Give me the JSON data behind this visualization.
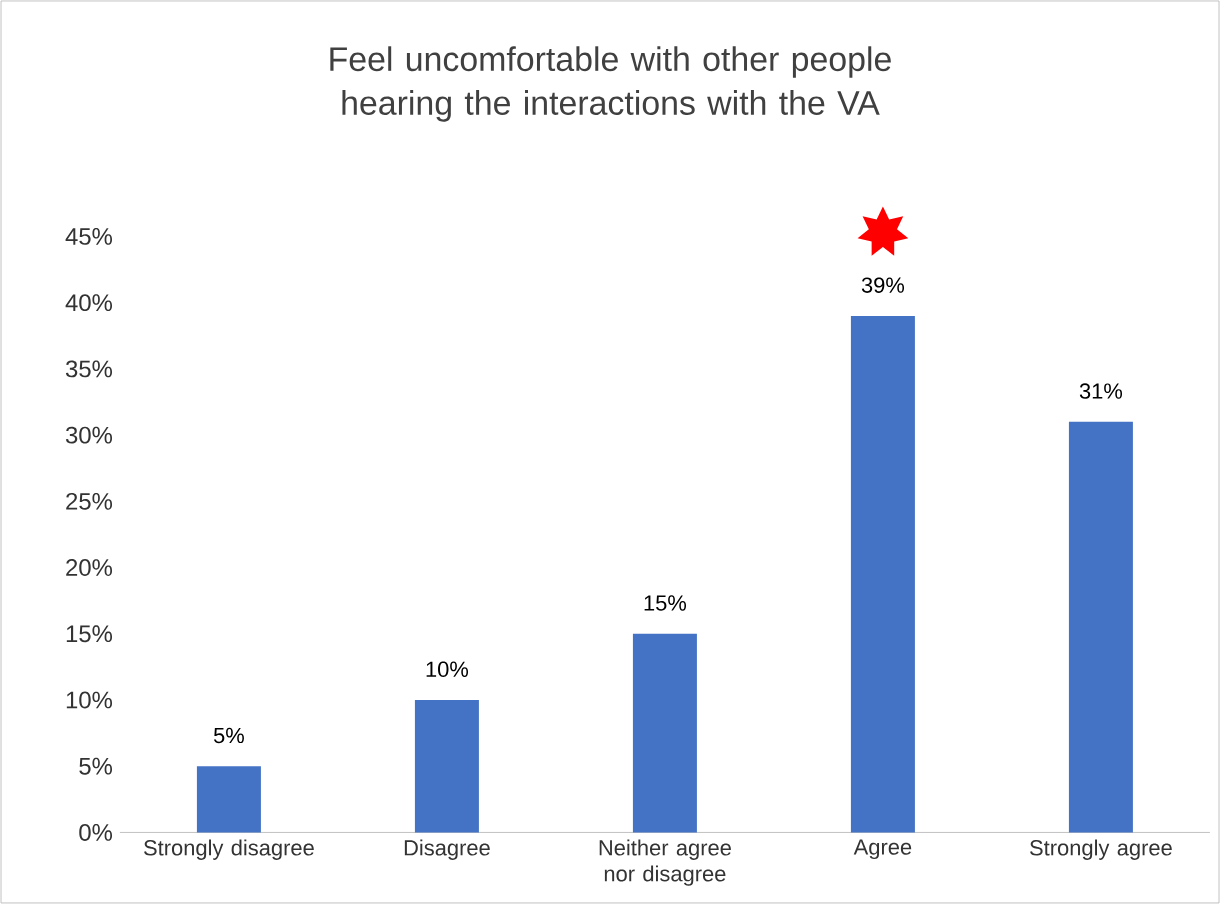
{
  "chart_data": {
    "type": "bar",
    "title": "Feel uncomfortable with other people hearing the interactions with the VA",
    "categories": [
      "Strongly disagree",
      "Disagree",
      "Neither agree nor disagree",
      "Agree",
      "Strongly agree"
    ],
    "values": [
      5,
      10,
      15,
      39,
      31
    ],
    "value_labels": [
      "5%",
      "10%",
      "15%",
      "39%",
      "31%"
    ],
    "color": "#4472c4",
    "ylim": [
      0,
      45
    ],
    "yticks": [
      {
        "value": 0,
        "label": "0%"
      },
      {
        "value": 5,
        "label": "5%"
      },
      {
        "value": 10,
        "label": "10%"
      },
      {
        "value": 15,
        "label": "15%"
      },
      {
        "value": 20,
        "label": "20%"
      },
      {
        "value": 25,
        "label": "25%"
      },
      {
        "value": 30,
        "label": "30%"
      },
      {
        "value": 35,
        "label": "35%"
      },
      {
        "value": 40,
        "label": "40%"
      },
      {
        "value": 45,
        "label": "45%"
      }
    ],
    "grid": false
  }
}
